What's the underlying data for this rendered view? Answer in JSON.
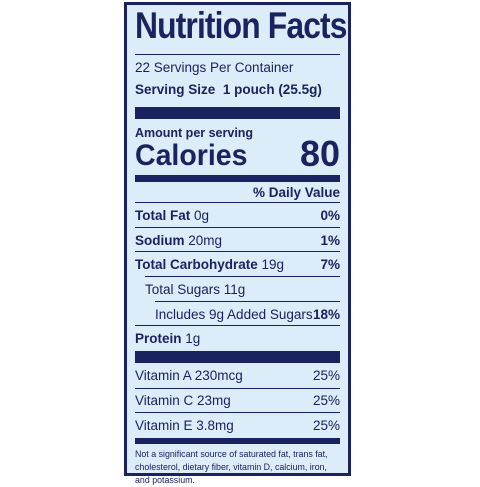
{
  "title": "Nutrition Facts",
  "servings_per_container": "22 Servings Per Container",
  "serving_size": {
    "label": "Serving Size",
    "value": "1 pouch (25.5g)"
  },
  "amount_per_serving": "Amount per serving",
  "calories": {
    "label": "Calories",
    "value": "80"
  },
  "daily_value_header": "% Daily Value",
  "nutrients": [
    {
      "name": "Total Fat",
      "amount": "0g",
      "dv": "0%"
    },
    {
      "name": "Sodium",
      "amount": "20mg",
      "dv": "1%"
    },
    {
      "name": "Total Carbohydrate",
      "amount": "19g",
      "dv": "7%"
    },
    {
      "name": "Total Sugars 11g"
    },
    {
      "name": "Includes 9g Added Sugars",
      "dv": "18%"
    },
    {
      "name": "Protein",
      "amount": "1g"
    }
  ],
  "vitamins": [
    {
      "label": "Vitamin A 230mcg",
      "dv": "25%"
    },
    {
      "label": "Vitamin C 23mg",
      "dv": "25%"
    },
    {
      "label": "Vitamin E 3.8mg",
      "dv": "25%"
    }
  ],
  "footnote": "Not a significant source of saturated fat, trans fat, cholesterol, dietary fiber, vitamin D, calcium, iron, and potassium.",
  "colors": {
    "ink": "#1b2260",
    "background": "#dcecf9"
  }
}
